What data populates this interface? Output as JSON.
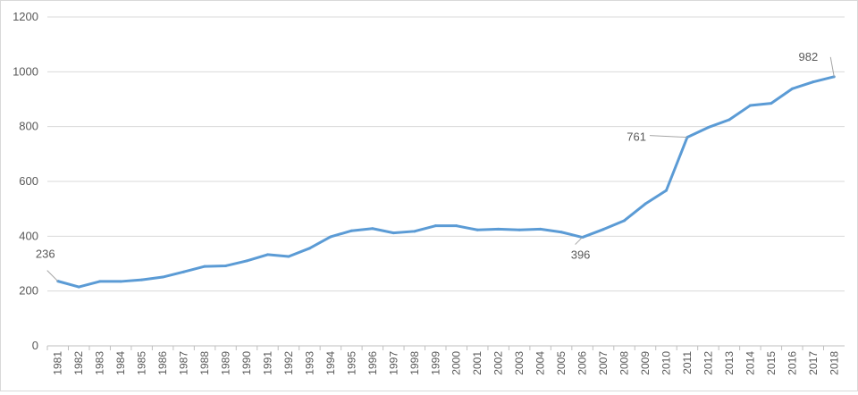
{
  "chart_data": {
    "type": "line",
    "title": "",
    "xlabel": "",
    "ylabel": "",
    "ylim": [
      0,
      1200
    ],
    "yticks": [
      0,
      200,
      400,
      600,
      800,
      1000,
      1200
    ],
    "grid": true,
    "legend": "none",
    "colors": {
      "line": "#5b9bd5",
      "grid": "#d9d9d9",
      "text": "#595959"
    },
    "x": [
      1981,
      1982,
      1983,
      1984,
      1985,
      1986,
      1987,
      1988,
      1989,
      1990,
      1991,
      1992,
      1993,
      1994,
      1995,
      1996,
      1997,
      1998,
      1999,
      2000,
      2001,
      2002,
      2003,
      2004,
      2005,
      2006,
      2007,
      2008,
      2009,
      2010,
      2011,
      2012,
      2013,
      2014,
      2015,
      2016,
      2017,
      2018
    ],
    "series": [
      {
        "values": [
          236,
          215,
          235,
          235,
          241,
          251,
          270,
          290,
          292,
          310,
          333,
          326,
          356,
          398,
          420,
          428,
          412,
          418,
          438,
          438,
          423,
          426,
          423,
          426,
          415,
          396,
          425,
          457,
          518,
          567,
          761,
          797,
          825,
          877,
          885,
          938,
          963,
          982
        ]
      }
    ],
    "data_labels": [
      {
        "x": 1981,
        "text": "236"
      },
      {
        "x": 2006,
        "text": "396"
      },
      {
        "x": 2011,
        "text": "761"
      },
      {
        "x": 2018,
        "text": "982"
      }
    ]
  }
}
